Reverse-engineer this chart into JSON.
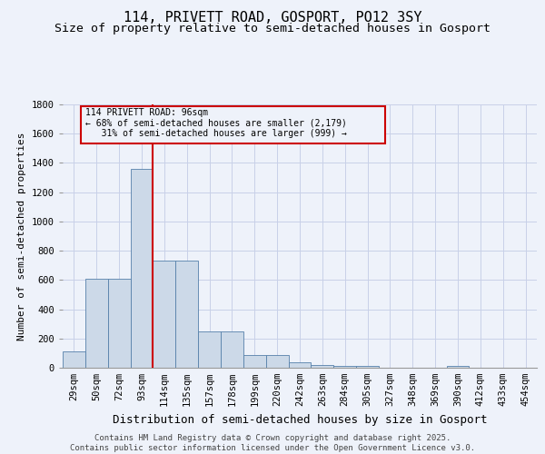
{
  "title": "114, PRIVETT ROAD, GOSPORT, PO12 3SY",
  "subtitle": "Size of property relative to semi-detached houses in Gosport",
  "xlabel": "Distribution of semi-detached houses by size in Gosport",
  "ylabel": "Number of semi-detached properties",
  "bin_labels": [
    "29sqm",
    "50sqm",
    "72sqm",
    "93sqm",
    "114sqm",
    "135sqm",
    "157sqm",
    "178sqm",
    "199sqm",
    "220sqm",
    "242sqm",
    "263sqm",
    "284sqm",
    "305sqm",
    "327sqm",
    "348sqm",
    "369sqm",
    "390sqm",
    "412sqm",
    "433sqm",
    "454sqm"
  ],
  "bar_heights": [
    110,
    610,
    610,
    1360,
    730,
    730,
    250,
    250,
    85,
    85,
    35,
    20,
    10,
    10,
    0,
    0,
    0,
    15,
    0,
    0,
    0
  ],
  "bar_color": "#ccd9e8",
  "bar_edge_color": "#5580aa",
  "highlight_line_color": "#cc0000",
  "annotation_line1": "114 PRIVETT ROAD: 96sqm",
  "annotation_line2": "← 68% of semi-detached houses are smaller (2,179)",
  "annotation_line3": "   31% of semi-detached houses are larger (999) →",
  "annotation_box_color": "#cc0000",
  "ylim": [
    0,
    1800
  ],
  "yticks": [
    0,
    200,
    400,
    600,
    800,
    1000,
    1200,
    1400,
    1600,
    1800
  ],
  "footnote": "Contains HM Land Registry data © Crown copyright and database right 2025.\nContains public sector information licensed under the Open Government Licence v3.0.",
  "bg_color": "#eef2fa",
  "grid_color": "#c8d0e8",
  "title_fontsize": 11,
  "subtitle_fontsize": 9.5,
  "ylabel_fontsize": 8,
  "xlabel_fontsize": 9,
  "tick_fontsize": 7.5,
  "footnote_fontsize": 6.5
}
